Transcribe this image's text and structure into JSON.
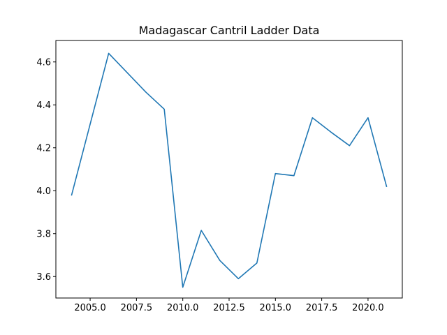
{
  "chart_data": {
    "type": "line",
    "title": "Madagascar Cantril Ladder Data",
    "xlabel": "",
    "ylabel": "",
    "xlim": [
      2003.15,
      2021.85
    ],
    "ylim": [
      3.5,
      4.7
    ],
    "xticks": [
      2005.0,
      2007.5,
      2010.0,
      2012.5,
      2015.0,
      2017.5,
      2020.0
    ],
    "xtick_labels": [
      "2005.0",
      "2007.5",
      "2010.0",
      "2012.5",
      "2015.0",
      "2017.5",
      "2020.0"
    ],
    "yticks": [
      3.6,
      3.8,
      4.0,
      4.2,
      4.4,
      4.6
    ],
    "ytick_labels": [
      "3.6",
      "3.8",
      "4.0",
      "4.2",
      "4.4",
      "4.6"
    ],
    "grid": false,
    "line_color": "#1f77b4",
    "series": [
      {
        "x": [
          2004,
          2006,
          2008,
          2009,
          2010,
          2011,
          2012,
          2013,
          2014,
          2015,
          2016,
          2017,
          2018,
          2019,
          2020,
          2021
        ],
        "y": [
          3.98,
          4.64,
          4.46,
          4.38,
          3.55,
          3.815,
          3.675,
          3.59,
          3.663,
          4.08,
          4.07,
          4.34,
          4.273,
          4.21,
          4.34,
          4.02
        ]
      }
    ]
  }
}
